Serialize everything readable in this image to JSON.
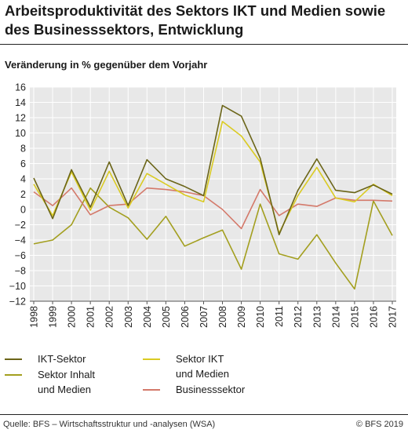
{
  "title": "Arbeitsproduktivität des Sektors IKT und Medien sowie des Businesssektors, Entwicklung",
  "subtitle": "Veränderung in % gegenüber dem Vorjahr",
  "source": "Quelle: BFS – Wirtschaftsstruktur und -analysen (WSA)",
  "copyright": "© BFS 2019",
  "legend": {
    "ikt": "IKT-Sektor",
    "sektor_ikt_medien": "Sektor IKT\nund Medien",
    "inhalt_medien": "Sektor Inhalt\nund Medien",
    "business": "Businesssektor"
  },
  "chart_data": {
    "type": "line",
    "title": "Arbeitsproduktivität des Sektors IKT und Medien sowie des Businesssektors, Entwicklung",
    "ylabel": "Veränderung in % gegenüber dem Vorjahr",
    "xlabel": "",
    "ylim": [
      -12,
      16
    ],
    "yticks": [
      -12,
      -10,
      -8,
      -6,
      -4,
      -2,
      0,
      2,
      4,
      6,
      8,
      10,
      12,
      14,
      16
    ],
    "grid": true,
    "categories": [
      "1998",
      "1999",
      "2000",
      "2001",
      "2002",
      "2003",
      "2004",
      "2005",
      "2006",
      "2007",
      "2008",
      "2009",
      "2010",
      "2011",
      "2012",
      "2013",
      "2014",
      "2015",
      "2016",
      "2017"
    ],
    "series": [
      {
        "name": "IKT-Sektor",
        "color": "#6b6518",
        "values": [
          4.1,
          -1.2,
          5.2,
          0.3,
          6.2,
          0.5,
          6.5,
          4.0,
          3.0,
          1.8,
          13.6,
          12.2,
          6.7,
          -3.3,
          2.5,
          6.6,
          2.5,
          2.2,
          3.2,
          2.0
        ]
      },
      {
        "name": "Sektor IKT und Medien",
        "color": "#dacb22",
        "values": [
          3.3,
          -0.8,
          4.9,
          -0.1,
          5.0,
          0.2,
          4.7,
          3.3,
          1.9,
          1.0,
          11.5,
          9.6,
          6.2,
          -3.1,
          1.8,
          5.5,
          1.5,
          1.0,
          3.3,
          1.8
        ]
      },
      {
        "name": "Sektor Inhalt und Medien",
        "color": "#a39f1f",
        "values": [
          -4.5,
          -4.0,
          -2.0,
          2.8,
          0.3,
          -1.1,
          -3.9,
          -0.9,
          -4.8,
          -3.7,
          -2.7,
          -7.8,
          0.7,
          -5.8,
          -6.5,
          -3.3,
          -7.0,
          -10.4,
          1.1,
          -3.4
        ]
      },
      {
        "name": "Businesssektor",
        "color": "#d4796a",
        "values": [
          2.3,
          0.5,
          2.8,
          -0.7,
          0.5,
          0.7,
          2.8,
          2.6,
          2.3,
          1.8,
          0.0,
          -2.5,
          2.6,
          -0.8,
          0.7,
          0.4,
          1.5,
          1.2,
          1.2,
          1.1
        ]
      }
    ],
    "colors": {
      "background": "#e8e8e8",
      "grid": "#ffffff",
      "axis_text": "#222222"
    }
  }
}
